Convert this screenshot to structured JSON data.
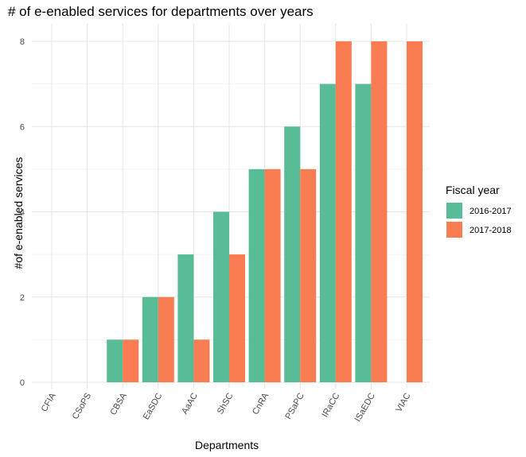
{
  "chart_data": {
    "type": "bar",
    "title": "# of e-enabled services for departments over years",
    "xlabel": "Departments",
    "ylabel": "#of e-enabled services",
    "categories": [
      "CFIA",
      "CSoPS",
      "CBSA",
      "EaSDC",
      "AaAC",
      "ShSC",
      "CnRA",
      "PSaPC",
      "IRaCC",
      "ISaEDC",
      "VIAC"
    ],
    "series": [
      {
        "name": "2016-2017",
        "color": "#58BC96",
        "values": [
          null,
          null,
          1,
          2,
          3,
          4,
          5,
          6,
          7,
          7,
          null
        ]
      },
      {
        "name": "2017-2018",
        "color": "#F97C52",
        "values": [
          null,
          null,
          1,
          2,
          1,
          3,
          5,
          5,
          8,
          8,
          8
        ]
      }
    ],
    "ylim": [
      0,
      8.5
    ],
    "yticks": [
      0,
      2,
      4,
      6,
      8
    ],
    "grid": true,
    "legend": {
      "title": "Fiscal year",
      "position": "right"
    }
  }
}
